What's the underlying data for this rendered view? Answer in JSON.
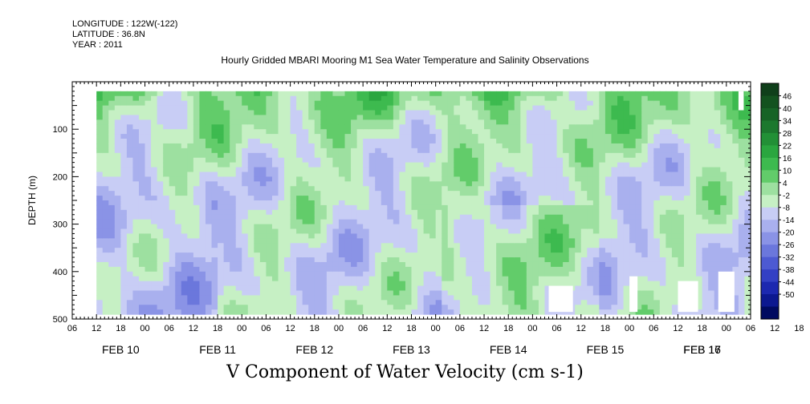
{
  "header": {
    "longitude": "LONGITUDE : 122W(-122)",
    "latitude": "LATITUDE : 36.8N",
    "year": "YEAR : 2011"
  },
  "chart_data": {
    "type": "heatmap",
    "title": "Hourly Gridded MBARI Mooring M1 Sea Water Temperature and Salinity Observations",
    "xlabel": "V Component of Water Velocity (cm s-1)",
    "ylabel": "DEPTH (m)",
    "x_range_hours": [
      0,
      168
    ],
    "ylim": [
      500,
      0
    ],
    "y_ticks": [
      100,
      200,
      300,
      400,
      500
    ],
    "hour_tick_labels": [
      "06",
      "12",
      "18",
      "00",
      "06",
      "12",
      "18",
      "00",
      "06",
      "12",
      "18",
      "00",
      "06",
      "12",
      "18",
      "00",
      "06",
      "12",
      "18",
      "00",
      "06",
      "12",
      "18",
      "00",
      "06",
      "12",
      "18",
      "00",
      "06",
      "12",
      "18",
      "00",
      "06"
    ],
    "day_labels": [
      "FEB 10",
      "FEB 11",
      "FEB 12",
      "FEB 13",
      "FEB 14",
      "FEB 15",
      "FEB 16",
      "FEB 17"
    ],
    "colorbar": {
      "labels": [
        "46",
        "40",
        "34",
        "28",
        "22",
        "16",
        "10",
        "4",
        "-2",
        "-8",
        "-14",
        "-20",
        "-26",
        "-32",
        "-38",
        "-44",
        "-50"
      ],
      "colors": [
        "#0f3f1a",
        "#13521f",
        "#176326",
        "#1c782e",
        "#229036",
        "#2aa63f",
        "#3dba4f",
        "#62cc6a",
        "#9de0a0",
        "#c6f0c4",
        "#c8cdf5",
        "#a9b0ee",
        "#8a93e6",
        "#6b77dc",
        "#4d5ad2",
        "#3340c4",
        "#1c28b0",
        "#0c1890",
        "#000a60"
      ],
      "value_range": [
        -50,
        46
      ]
    },
    "data_region": {
      "depth_range_m": [
        20,
        485
      ],
      "time_range_hours": [
        6,
        168
      ]
    },
    "field_description_pattern": "green (northward, positive) dominates near-surface 20-150 m; blue (southward, negative) dominates deeper layers, strongest near FEB 10-11 at 300-450 m; data gaps (white) near FEB 14-16 at depth"
  }
}
